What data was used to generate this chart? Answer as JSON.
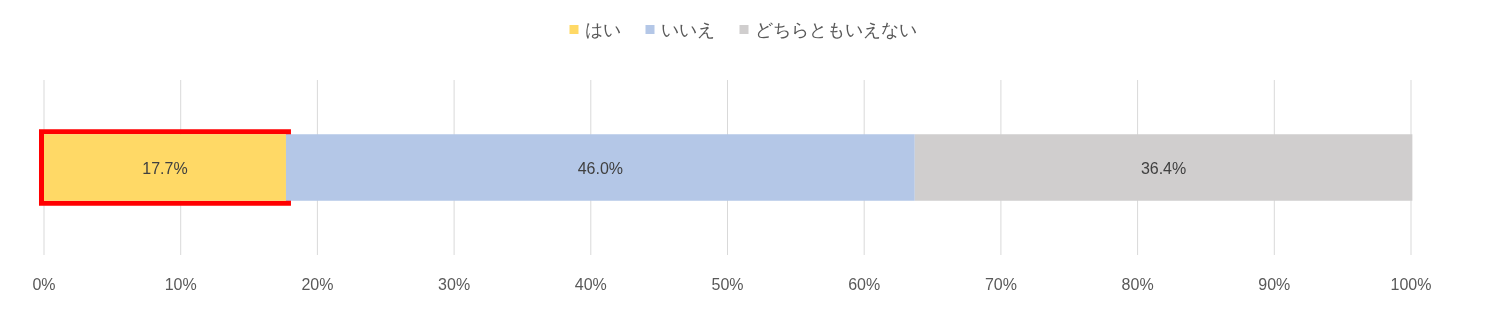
{
  "chart_data": {
    "type": "bar",
    "orientation": "horizontal",
    "stacked": true,
    "categories": [
      null
    ],
    "series": [
      {
        "name": "はい",
        "color": "#ffd966",
        "values": [
          17.7
        ],
        "value_labels": [
          "17.7%"
        ]
      },
      {
        "name": "いいえ",
        "color": "#b4c7e7",
        "values": [
          46.0
        ],
        "value_labels": [
          "46.0%"
        ]
      },
      {
        "name": "どちらともいえない",
        "color": "#d0cece",
        "values": [
          36.4
        ],
        "value_labels": [
          "36.4%"
        ]
      }
    ],
    "xlim": [
      0,
      100
    ],
    "xticks": [
      {
        "value": 0,
        "label": "0%"
      },
      {
        "value": 10,
        "label": "10%"
      },
      {
        "value": 20,
        "label": "20%"
      },
      {
        "value": 30,
        "label": "30%"
      },
      {
        "value": 40,
        "label": "40%"
      },
      {
        "value": 50,
        "label": "50%"
      },
      {
        "value": 60,
        "label": "60%"
      },
      {
        "value": 70,
        "label": "70%"
      },
      {
        "value": 80,
        "label": "80%"
      },
      {
        "value": 90,
        "label": "90%"
      },
      {
        "value": 100,
        "label": "100%"
      }
    ],
    "bands": [
      {
        "axis": "x",
        "from": 0,
        "to": 17.7,
        "color": "#ff0000"
      }
    ],
    "grid": "x",
    "legend": "top"
  }
}
